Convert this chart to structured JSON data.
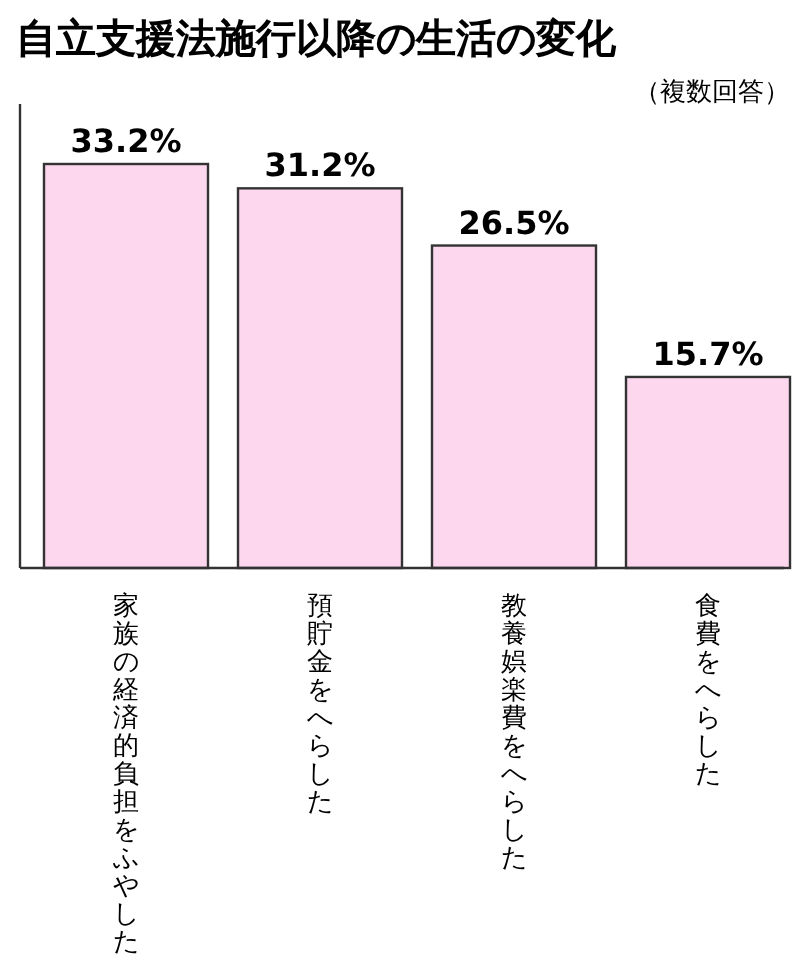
{
  "chart_data": {
    "type": "bar",
    "title": "自立支援法施行以降の生活の変化",
    "subtitle": "（複数回答）",
    "categories": [
      "家族の経済的負担をふやした",
      "預貯金をへらした",
      "教養娯楽費をへらした",
      "食費をへらした"
    ],
    "values": [
      33.2,
      31.2,
      26.5,
      15.7
    ],
    "color": "#fcd7ee",
    "data_labels": true,
    "value_labels": [
      "33.2%",
      "31.2%",
      "26.5%",
      "15.7%"
    ]
  }
}
